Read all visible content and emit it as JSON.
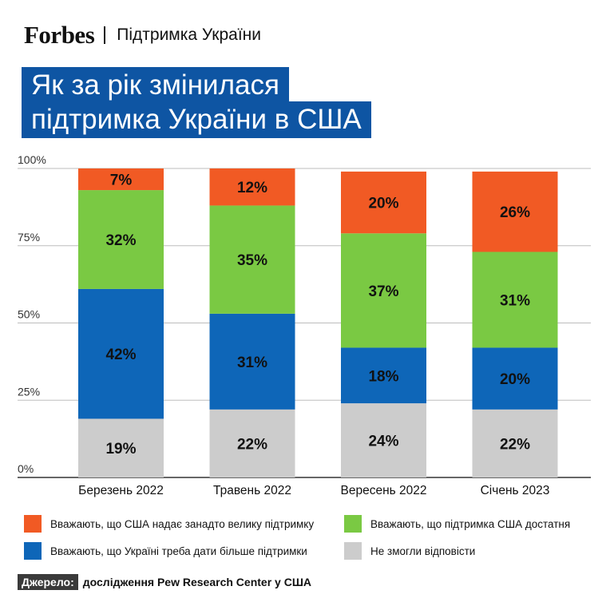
{
  "header": {
    "brand": "Forbes",
    "section": "Підтримка України"
  },
  "title": {
    "line1": "Як за рік змінилася",
    "line2": "підтримка України в США"
  },
  "colors": {
    "title_bg": "#0e55a3",
    "too_much": "#f15a24",
    "enough": "#7ac943",
    "more": "#0e66b8",
    "no_answer": "#cccccc"
  },
  "chart_data": {
    "type": "bar",
    "stacked": true,
    "categories": [
      "Березень 2022",
      "Травень 2022",
      "Вересень 2022",
      "Січень 2023"
    ],
    "series": [
      {
        "name": "Не змогли відповісти",
        "color": "#cccccc",
        "values": [
          19,
          22,
          24,
          22
        ],
        "labels": [
          "19%",
          "22%",
          "24%",
          "22%"
        ]
      },
      {
        "name": "Вважають, що Україні треба дати більше підтримки",
        "color": "#0e66b8",
        "values": [
          42,
          31,
          18,
          20
        ],
        "labels": [
          "42%",
          "31%",
          "18%",
          "20%"
        ]
      },
      {
        "name": "Вважають, що підтримка США достатня",
        "color": "#7ac943",
        "values": [
          32,
          35,
          37,
          31
        ],
        "labels": [
          "32%",
          "35%",
          "37%",
          "31%"
        ]
      },
      {
        "name": "Вважають, що США надає занадто велику підтримку",
        "color": "#f15a24",
        "values": [
          7,
          12,
          20,
          26
        ],
        "labels": [
          "7%",
          "12%",
          "20%",
          "26%"
        ]
      }
    ],
    "ylim": [
      0,
      100
    ],
    "yticks": [
      0,
      25,
      50,
      75,
      100
    ],
    "ytick_labels": [
      "0%",
      "25%",
      "50%",
      "75%",
      "100%"
    ],
    "grid": true,
    "legend_position": "bottom"
  },
  "legend": [
    {
      "label": "Вважають, що США надає занадто велику підтримку",
      "color": "#f15a24"
    },
    {
      "label": "Вважають, що підтримка США достатня",
      "color": "#7ac943"
    },
    {
      "label": "Вважають, що Україні треба дати більше підтримки",
      "color": "#0e66b8"
    },
    {
      "label": "Не змогли відповісти",
      "color": "#cccccc"
    }
  ],
  "source": {
    "label": "Джерело:",
    "text": "дослідження Pew Research Center у США"
  }
}
